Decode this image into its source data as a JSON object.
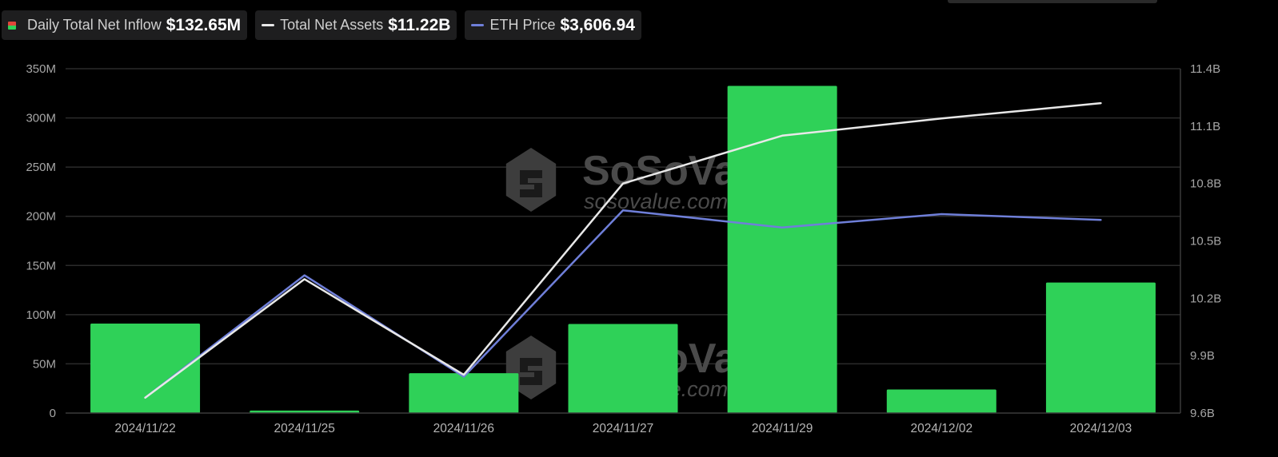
{
  "legend": {
    "inflow": {
      "label": "Daily Total Net Inflow",
      "value": "$132.65M",
      "color_top": "#e0463a",
      "color_bottom": "#2fd158"
    },
    "assets": {
      "label": "Total Net Assets",
      "value": "$11.22B",
      "color": "#e8e8e8"
    },
    "price": {
      "label": "ETH Price",
      "value": "$3,606.94",
      "color": "#6f7fd9"
    }
  },
  "watermark": {
    "brand": "SoSoValue",
    "site": "sosovalue.com"
  },
  "colors": {
    "background": "#000000",
    "bar": "#2fd158",
    "assets_line": "#e8e8e8",
    "price_line": "#6f7fd9",
    "grid": "#2b2b2b"
  },
  "chart_data": {
    "type": "bar",
    "categories": [
      "2024/11/22",
      "2024/11/25",
      "2024/11/26",
      "2024/11/27",
      "2024/11/29",
      "2024/12/02",
      "2024/12/03"
    ],
    "series": [
      {
        "name": "Daily Total Net Inflow",
        "type": "bar",
        "axis": "left",
        "values": [
          91,
          2.5,
          40.5,
          90.5,
          332.5,
          24,
          132.65
        ]
      },
      {
        "name": "Total Net Assets",
        "type": "line",
        "axis": "right",
        "values": [
          9.68,
          10.3,
          9.8,
          10.8,
          11.05,
          11.14,
          11.22
        ]
      },
      {
        "name": "ETH Price",
        "type": "line",
        "axis": "right",
        "values": [
          9.68,
          10.32,
          9.79,
          10.66,
          10.57,
          10.64,
          10.61
        ]
      }
    ],
    "y_left": {
      "ticks": [
        "0",
        "50M",
        "100M",
        "150M",
        "200M",
        "250M",
        "300M",
        "350M"
      ],
      "range": [
        0,
        350
      ]
    },
    "y_right": {
      "ticks": [
        "9.6B",
        "9.9B",
        "10.2B",
        "10.5B",
        "10.8B",
        "11.1B",
        "11.4B"
      ],
      "range": [
        9.6,
        11.4
      ]
    },
    "grid": true,
    "legend_position": "top-left"
  }
}
